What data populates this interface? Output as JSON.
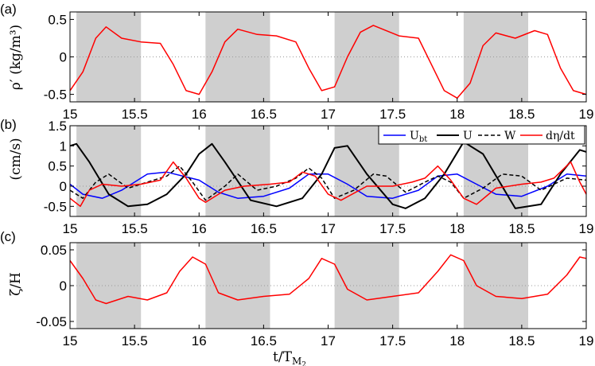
{
  "chart_data": [
    {
      "panel": "(a)",
      "type": "line",
      "ylabel": "ρ′ (kg/m³)",
      "xlim": [
        15,
        19
      ],
      "ylim": [
        -0.6,
        0.6
      ],
      "xticks": [
        15,
        15.5,
        16,
        16.5,
        17,
        17.5,
        18,
        18.5,
        19
      ],
      "xtick_labels": [
        "15",
        "15.5",
        "16",
        "16.5",
        "17",
        "17.5",
        "18",
        "18.5",
        "19"
      ],
      "yticks": [
        -0.5,
        0,
        0.5
      ],
      "ytick_labels": [
        "-0.5",
        "0",
        "0.5"
      ],
      "shaded_intervals": [
        [
          15.05,
          15.55
        ],
        [
          16.05,
          16.55
        ],
        [
          17.05,
          17.55
        ],
        [
          18.05,
          18.55
        ]
      ],
      "zero_line": true,
      "series": [
        {
          "color": "#ff0000",
          "style": "solid",
          "x": [
            15,
            15.1,
            15.2,
            15.28,
            15.4,
            15.55,
            15.7,
            15.8,
            15.9,
            16,
            16.1,
            16.2,
            16.3,
            16.45,
            16.6,
            16.75,
            16.85,
            16.95,
            17.05,
            17.15,
            17.25,
            17.35,
            17.55,
            17.7,
            17.8,
            17.9,
            18,
            18.1,
            18.2,
            18.3,
            18.45,
            18.6,
            18.7,
            18.8,
            18.9,
            19
          ],
          "y": [
            -0.45,
            -0.2,
            0.25,
            0.4,
            0.25,
            0.2,
            0.18,
            -0.1,
            -0.45,
            -0.5,
            -0.2,
            0.2,
            0.37,
            0.3,
            0.28,
            0.2,
            -0.15,
            -0.45,
            -0.4,
            0.0,
            0.33,
            0.42,
            0.28,
            0.25,
            -0.1,
            -0.45,
            -0.55,
            -0.35,
            0.15,
            0.32,
            0.25,
            0.35,
            0.3,
            -0.15,
            -0.45,
            -0.5
          ]
        }
      ]
    },
    {
      "panel": "(b)",
      "type": "line",
      "ylabel": "(cm/s)",
      "xlim": [
        15,
        19
      ],
      "ylim": [
        -0.75,
        1.5
      ],
      "xticks": [
        15,
        15.5,
        16,
        16.5,
        17,
        17.5,
        18,
        18.5,
        19
      ],
      "xtick_labels": [
        "15",
        "15.5",
        "16",
        "16.5",
        "17",
        "17.5",
        "18",
        "18.5",
        "19"
      ],
      "yticks": [
        -0.5,
        0,
        0.5,
        1,
        1.5
      ],
      "ytick_labels": [
        "-0.5",
        "0",
        "0.5",
        "1",
        "1.5"
      ],
      "shaded_intervals": [
        [
          15.05,
          15.55
        ],
        [
          16.05,
          16.55
        ],
        [
          17.05,
          17.55
        ],
        [
          18.05,
          18.55
        ]
      ],
      "zero_line": true,
      "legend_position": "top-right",
      "series": [
        {
          "name": "U_bt",
          "name_display": "U",
          "name_sub": "bt",
          "color": "#0000ff",
          "style": "solid",
          "x": [
            15,
            15.1,
            15.25,
            15.4,
            15.6,
            15.75,
            16,
            16.15,
            16.3,
            16.5,
            16.7,
            16.85,
            17,
            17.15,
            17.3,
            17.5,
            17.7,
            17.85,
            18,
            18.15,
            18.3,
            18.5,
            18.7,
            18.85,
            19
          ],
          "y": [
            0.05,
            -0.2,
            -0.3,
            -0.1,
            0.3,
            0.35,
            0.15,
            -0.15,
            -0.3,
            -0.25,
            -0.05,
            0.3,
            0.3,
            0.05,
            -0.25,
            -0.3,
            -0.1,
            0.25,
            0.3,
            0.05,
            -0.2,
            -0.25,
            0.0,
            0.3,
            0.25
          ]
        },
        {
          "name": "U",
          "color": "#000000",
          "style": "solid",
          "x": [
            15,
            15.05,
            15.15,
            15.3,
            15.45,
            15.6,
            15.75,
            15.9,
            16,
            16.1,
            16.2,
            16.4,
            16.6,
            16.8,
            16.95,
            17.05,
            17.15,
            17.3,
            17.5,
            17.6,
            17.75,
            17.9,
            18.05,
            18.2,
            18.45,
            18.65,
            18.8,
            18.95,
            19
          ],
          "y": [
            1.0,
            1.05,
            0.6,
            -0.2,
            -0.5,
            -0.45,
            -0.2,
            0.3,
            0.8,
            1.05,
            0.6,
            -0.35,
            -0.5,
            -0.3,
            0.3,
            0.95,
            1.0,
            0.3,
            -0.45,
            -0.55,
            -0.3,
            0.3,
            1.1,
            0.8,
            -0.55,
            -0.45,
            0.3,
            0.9,
            0.85
          ]
        },
        {
          "name": "W",
          "color": "#000000",
          "style": "dashed",
          "x": [
            15,
            15.1,
            15.2,
            15.3,
            15.45,
            15.6,
            15.75,
            15.85,
            15.95,
            16.05,
            16.2,
            16.3,
            16.45,
            16.6,
            16.75,
            16.85,
            16.95,
            17.05,
            17.2,
            17.35,
            17.45,
            17.6,
            17.75,
            17.85,
            17.95,
            18.05,
            18.2,
            18.35,
            18.5,
            18.65,
            18.75,
            18.85,
            19
          ],
          "y": [
            -0.1,
            -0.3,
            0.1,
            0.3,
            -0.05,
            0.1,
            0.25,
            0.5,
            0.1,
            -0.35,
            0.0,
            0.3,
            -0.1,
            0.0,
            0.2,
            0.45,
            0.2,
            -0.3,
            -0.1,
            0.3,
            0.25,
            -0.15,
            0.1,
            0.25,
            0.1,
            -0.3,
            -0.05,
            0.3,
            0.25,
            -0.1,
            0.05,
            0.2,
            0.15
          ]
        },
        {
          "name": "dη/dt",
          "color": "#ff0000",
          "style": "solid",
          "x": [
            15,
            15.08,
            15.15,
            15.25,
            15.4,
            15.55,
            15.7,
            15.8,
            15.9,
            16.0,
            16.05,
            16.2,
            16.35,
            16.55,
            16.7,
            16.8,
            16.9,
            17.0,
            17.1,
            17.3,
            17.5,
            17.65,
            17.75,
            17.85,
            17.95,
            18.05,
            18.15,
            18.3,
            18.5,
            18.65,
            18.75,
            18.88,
            18.95,
            19
          ],
          "y": [
            -0.3,
            -0.5,
            -0.1,
            0.05,
            0.0,
            0.05,
            0.15,
            0.6,
            0.2,
            -0.3,
            -0.4,
            -0.1,
            0.0,
            0.05,
            0.1,
            0.35,
            0.25,
            -0.2,
            -0.35,
            0.0,
            0.0,
            0.1,
            0.2,
            0.5,
            0.15,
            -0.3,
            -0.45,
            -0.05,
            0.05,
            0.1,
            0.2,
            0.6,
            0.1,
            -0.2
          ]
        }
      ]
    },
    {
      "panel": "(c)",
      "type": "line",
      "ylabel": "ζ/H",
      "xlabel": "t/T_M2",
      "xlim": [
        15,
        19
      ],
      "ylim": [
        -0.06,
        0.06
      ],
      "xticks": [
        15,
        15.5,
        16,
        16.5,
        17,
        17.5,
        18,
        18.5,
        19
      ],
      "xtick_labels": [
        "15",
        "15.5",
        "16",
        "16.5",
        "17",
        "17.5",
        "18",
        "18.5",
        "19"
      ],
      "yticks": [
        -0.05,
        0,
        0.05
      ],
      "ytick_labels": [
        "-0.05",
        "0",
        "0.05"
      ],
      "shaded_intervals": [
        [
          15.05,
          15.55
        ],
        [
          16.05,
          16.55
        ],
        [
          17.05,
          17.55
        ],
        [
          18.05,
          18.55
        ]
      ],
      "zero_line": true,
      "series": [
        {
          "color": "#ff0000",
          "style": "solid",
          "x": [
            15,
            15.1,
            15.2,
            15.28,
            15.45,
            15.6,
            15.75,
            15.85,
            15.95,
            16.05,
            16.15,
            16.3,
            16.5,
            16.7,
            16.85,
            16.95,
            17.05,
            17.15,
            17.3,
            17.5,
            17.7,
            17.85,
            17.95,
            18.05,
            18.15,
            18.3,
            18.5,
            18.7,
            18.85,
            18.95,
            19
          ],
          "y": [
            0.035,
            0.01,
            -0.02,
            -0.025,
            -0.015,
            -0.02,
            -0.01,
            0.02,
            0.04,
            0.03,
            -0.01,
            -0.02,
            -0.015,
            -0.012,
            0.01,
            0.038,
            0.03,
            -0.005,
            -0.02,
            -0.015,
            -0.01,
            0.02,
            0.043,
            0.035,
            0.0,
            -0.015,
            -0.018,
            -0.012,
            0.015,
            0.04,
            0.038
          ]
        }
      ]
    }
  ],
  "panel_labels": [
    "(a)",
    "(b)",
    "(c)"
  ],
  "axes_labels": {
    "a_ylabel": "ρ′ (kg/m³)",
    "b_ylabel": "(cm/s)",
    "c_ylabel": "ζ/H",
    "xlabel": "t/T",
    "xlabel_sub": "M",
    "xlabel_subsub": "2"
  }
}
